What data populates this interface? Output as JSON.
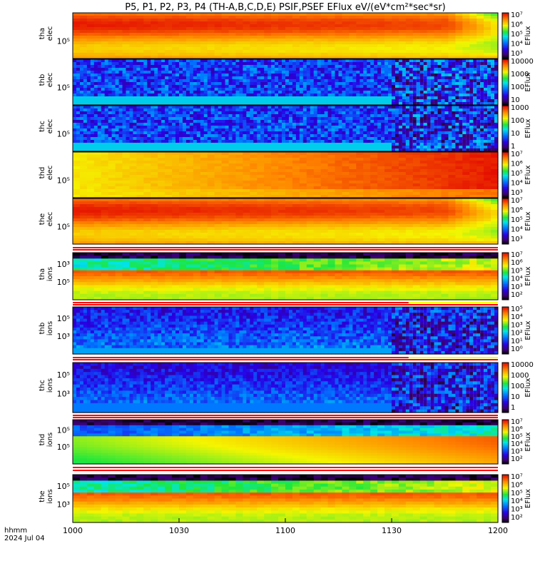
{
  "title": "P5, P1, P2, P3, P4 (TH-A,B,C,D,E) PSIF,PSEF EFlux eV/(eV*cm²*sec*sr)",
  "date_axis": {
    "label_line1": "hhmm",
    "label_line2": "2024 Jul 04"
  },
  "chart_data": {
    "type": "heatmap",
    "x_ticks": [
      "1000",
      "1030",
      "1100",
      "1130",
      "1200"
    ],
    "panels": [
      {
        "id": "tha-elec",
        "probe": "tha",
        "species": "elec",
        "ytick": "10⁵",
        "colorbar_unit": "EFlux",
        "colorbar_labels": [
          "10⁷",
          "10⁶",
          "10⁵",
          "10⁴",
          "10³"
        ],
        "regime": "hot"
      },
      {
        "id": "thb-elec",
        "probe": "thb",
        "species": "elec",
        "ytick": "10⁵",
        "colorbar_unit": "EFlux",
        "colorbar_labels": [
          "10000",
          "1000",
          "100",
          "10"
        ],
        "regime": "noise"
      },
      {
        "id": "thc-elec",
        "probe": "thc",
        "species": "elec",
        "ytick": "10⁵",
        "colorbar_unit": "EFlux",
        "colorbar_labels": [
          "1000",
          "100",
          "10",
          "1"
        ],
        "regime": "noise"
      },
      {
        "id": "thd-elec",
        "probe": "thd",
        "species": "elec",
        "ytick": "10⁵",
        "colorbar_unit": "EFlux",
        "colorbar_labels": [
          "10⁷",
          "10⁶",
          "10⁵",
          "10⁴",
          "10³"
        ],
        "regime": "hot-yellow"
      },
      {
        "id": "the-elec",
        "probe": "the",
        "species": "elec",
        "ytick": "10⁵",
        "colorbar_unit": "EFlux",
        "colorbar_labels": [
          "10⁷",
          "10⁶",
          "10⁵",
          "10⁴",
          "10³"
        ],
        "regime": "hot"
      },
      {
        "id": "tha-ions",
        "probe": "tha",
        "species": "ions",
        "ytick": "10⁵",
        "ytick2": "10³",
        "colorbar_unit": "EFlux",
        "colorbar_labels": [
          "10⁷",
          "10⁶",
          "10⁵",
          "10⁴",
          "10³",
          "10²"
        ],
        "regime": "ions"
      },
      {
        "id": "thb-ions",
        "probe": "thb",
        "species": "ions",
        "ytick": "10³",
        "ytick2": "10⁵",
        "colorbar_unit": "EFlux",
        "colorbar_labels": [
          "10⁵",
          "10⁴",
          "10³",
          "10²",
          "10¹",
          "10⁰"
        ],
        "regime": "ion-noise"
      },
      {
        "id": "thc-ions",
        "probe": "thc",
        "species": "ions",
        "ytick": "10³",
        "ytick2": "10⁵",
        "colorbar_unit": "EFlux",
        "colorbar_labels": [
          "10000",
          "1000",
          "100",
          "10",
          "1"
        ],
        "regime": "ion-noise2"
      },
      {
        "id": "thd-ions",
        "probe": "thd",
        "species": "ions",
        "ytick": "10⁵",
        "ytick2": "10⁵",
        "colorbar_unit": "EFlux",
        "colorbar_labels": [
          "10⁷",
          "10⁶",
          "10⁵",
          "10⁴",
          "10³",
          "10²"
        ],
        "regime": "ions-green"
      },
      {
        "id": "the-ions",
        "probe": "the",
        "species": "ions",
        "ytick": "10³",
        "ytick2": "10⁵",
        "colorbar_unit": "EFlux",
        "colorbar_labels": [
          "10⁷",
          "10⁶",
          "10⁵",
          "10⁴",
          "10³",
          "10²"
        ],
        "regime": "ions"
      }
    ]
  }
}
